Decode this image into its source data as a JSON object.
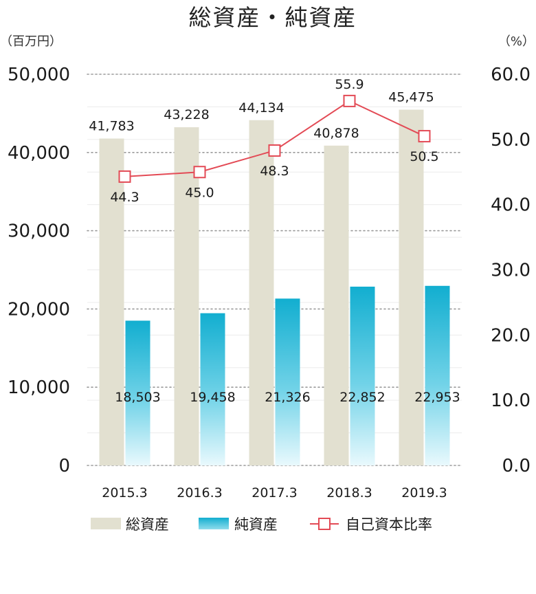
{
  "chart_data": {
    "type": "bar",
    "title": "総資産・純資産",
    "y_left_unit": "（百万円）",
    "y_right_unit": "（%）",
    "categories": [
      "2015.3",
      "2016.3",
      "2017.3",
      "2018.3",
      "2019.3"
    ],
    "series": [
      {
        "name": "総資産",
        "type": "bar",
        "axis": "left",
        "color": "#e2e0d0",
        "values": [
          41783,
          43228,
          44134,
          40878,
          45475
        ],
        "labels": [
          "41,783",
          "43,228",
          "44,134",
          "40,878",
          "45,475"
        ]
      },
      {
        "name": "純資産",
        "type": "bar",
        "axis": "left",
        "color": "#29b8d6",
        "values": [
          18503,
          19458,
          21326,
          22852,
          22953
        ],
        "labels": [
          "18,503",
          "19,458",
          "21,326",
          "22,852",
          "22,953"
        ]
      },
      {
        "name": "自己資本比率",
        "type": "line",
        "axis": "right",
        "color": "#e34a55",
        "values": [
          44.3,
          45.0,
          48.3,
          55.9,
          50.5
        ],
        "labels": [
          "44.3",
          "45.0",
          "48.3",
          "55.9",
          "50.5"
        ]
      }
    ],
    "y_left": {
      "min": 0,
      "max": 50000,
      "ticks": [
        "0",
        "10,000",
        "20,000",
        "30,000",
        "40,000",
        "50,000"
      ]
    },
    "y_right": {
      "min": 0,
      "max": 60,
      "ticks": [
        "0.0",
        "10.0",
        "20.0",
        "30.0",
        "40.0",
        "50.0",
        "60.0"
      ]
    },
    "grid": true,
    "legend_position": "bottom"
  }
}
